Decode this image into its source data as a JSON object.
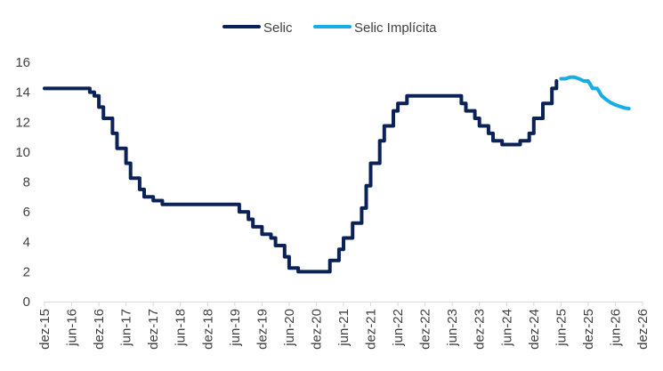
{
  "chart_data": {
    "type": "line",
    "title": "",
    "xlabel": "",
    "ylabel": "",
    "ylim": [
      0,
      16
    ],
    "yticks": [
      0,
      2,
      4,
      6,
      8,
      10,
      12,
      14,
      16
    ],
    "x_tick_labels": [
      "dez-15",
      "jun-16",
      "dez-16",
      "jun-17",
      "dez-17",
      "jun-18",
      "dez-18",
      "jun-19",
      "dez-19",
      "jun-20",
      "dez-20",
      "jun-21",
      "dez-21",
      "jun-22",
      "dez-22",
      "jun-23",
      "dez-23",
      "jun-24",
      "dez-24",
      "jun-25",
      "dez-25",
      "jun-26",
      "dez-26"
    ],
    "grid": false,
    "legend_position": "top",
    "colors": {
      "Selic": "#0b2258",
      "Selic Implícita": "#17aee6",
      "axis": "#d9d9d9",
      "text": "#404040"
    },
    "series": [
      {
        "name": "Selic",
        "points": [
          [
            "2015-12",
            14.25
          ],
          [
            "2016-01",
            14.25
          ],
          [
            "2016-02",
            14.25
          ],
          [
            "2016-03",
            14.25
          ],
          [
            "2016-04",
            14.25
          ],
          [
            "2016-05",
            14.25
          ],
          [
            "2016-06",
            14.25
          ],
          [
            "2016-07",
            14.25
          ],
          [
            "2016-08",
            14.25
          ],
          [
            "2016-09",
            14.25
          ],
          [
            "2016-10",
            14.0
          ],
          [
            "2016-11",
            13.75
          ],
          [
            "2016-12",
            13.0
          ],
          [
            "2017-01",
            12.25
          ],
          [
            "2017-02",
            12.25
          ],
          [
            "2017-03",
            11.25
          ],
          [
            "2017-04",
            10.25
          ],
          [
            "2017-05",
            10.25
          ],
          [
            "2017-06",
            9.25
          ],
          [
            "2017-07",
            8.25
          ],
          [
            "2017-08",
            8.25
          ],
          [
            "2017-09",
            7.5
          ],
          [
            "2017-10",
            7.0
          ],
          [
            "2017-11",
            7.0
          ],
          [
            "2017-12",
            6.75
          ],
          [
            "2018-01",
            6.75
          ],
          [
            "2018-02",
            6.5
          ],
          [
            "2018-03",
            6.5
          ],
          [
            "2018-04",
            6.5
          ],
          [
            "2018-05",
            6.5
          ],
          [
            "2018-06",
            6.5
          ],
          [
            "2018-07",
            6.5
          ],
          [
            "2018-08",
            6.5
          ],
          [
            "2018-09",
            6.5
          ],
          [
            "2018-10",
            6.5
          ],
          [
            "2018-11",
            6.5
          ],
          [
            "2018-12",
            6.5
          ],
          [
            "2019-01",
            6.5
          ],
          [
            "2019-02",
            6.5
          ],
          [
            "2019-03",
            6.5
          ],
          [
            "2019-04",
            6.5
          ],
          [
            "2019-05",
            6.5
          ],
          [
            "2019-06",
            6.5
          ],
          [
            "2019-07",
            6.0
          ],
          [
            "2019-08",
            6.0
          ],
          [
            "2019-09",
            5.5
          ],
          [
            "2019-10",
            5.0
          ],
          [
            "2019-11",
            5.0
          ],
          [
            "2019-12",
            4.5
          ],
          [
            "2020-01",
            4.5
          ],
          [
            "2020-02",
            4.25
          ],
          [
            "2020-03",
            3.75
          ],
          [
            "2020-04",
            3.75
          ],
          [
            "2020-05",
            3.0
          ],
          [
            "2020-06",
            2.25
          ],
          [
            "2020-07",
            2.25
          ],
          [
            "2020-08",
            2.0
          ],
          [
            "2020-09",
            2.0
          ],
          [
            "2020-10",
            2.0
          ],
          [
            "2020-11",
            2.0
          ],
          [
            "2020-12",
            2.0
          ],
          [
            "2021-01",
            2.0
          ],
          [
            "2021-02",
            2.0
          ],
          [
            "2021-03",
            2.75
          ],
          [
            "2021-04",
            2.75
          ],
          [
            "2021-05",
            3.5
          ],
          [
            "2021-06",
            4.25
          ],
          [
            "2021-07",
            4.25
          ],
          [
            "2021-08",
            5.25
          ],
          [
            "2021-09",
            5.25
          ],
          [
            "2021-10",
            6.25
          ],
          [
            "2021-11",
            7.75
          ],
          [
            "2021-12",
            9.25
          ],
          [
            "2022-01",
            9.25
          ],
          [
            "2022-02",
            10.75
          ],
          [
            "2022-03",
            11.75
          ],
          [
            "2022-04",
            11.75
          ],
          [
            "2022-05",
            12.75
          ],
          [
            "2022-06",
            13.25
          ],
          [
            "2022-07",
            13.25
          ],
          [
            "2022-08",
            13.75
          ],
          [
            "2022-09",
            13.75
          ],
          [
            "2022-10",
            13.75
          ],
          [
            "2022-11",
            13.75
          ],
          [
            "2022-12",
            13.75
          ],
          [
            "2023-01",
            13.75
          ],
          [
            "2023-02",
            13.75
          ],
          [
            "2023-03",
            13.75
          ],
          [
            "2023-04",
            13.75
          ],
          [
            "2023-05",
            13.75
          ],
          [
            "2023-06",
            13.75
          ],
          [
            "2023-07",
            13.75
          ],
          [
            "2023-08",
            13.25
          ],
          [
            "2023-09",
            12.75
          ],
          [
            "2023-10",
            12.75
          ],
          [
            "2023-11",
            12.25
          ],
          [
            "2023-12",
            11.75
          ],
          [
            "2024-01",
            11.75
          ],
          [
            "2024-02",
            11.25
          ],
          [
            "2024-03",
            10.75
          ],
          [
            "2024-04",
            10.75
          ],
          [
            "2024-05",
            10.5
          ],
          [
            "2024-06",
            10.5
          ],
          [
            "2024-07",
            10.5
          ],
          [
            "2024-08",
            10.5
          ],
          [
            "2024-09",
            10.75
          ],
          [
            "2024-10",
            10.75
          ],
          [
            "2024-11",
            11.25
          ],
          [
            "2024-12",
            12.25
          ],
          [
            "2025-01",
            12.25
          ],
          [
            "2025-02",
            13.25
          ],
          [
            "2025-03",
            13.25
          ],
          [
            "2025-04",
            14.25
          ],
          [
            "2025-05",
            14.75
          ]
        ]
      },
      {
        "name": "Selic Implícita",
        "points": [
          [
            "2025-06",
            14.9
          ],
          [
            "2025-07",
            14.9
          ],
          [
            "2025-08",
            15.0
          ],
          [
            "2025-09",
            15.0
          ],
          [
            "2025-10",
            14.9
          ],
          [
            "2025-11",
            14.75
          ],
          [
            "2025-12",
            14.75
          ],
          [
            "2026-01",
            14.25
          ],
          [
            "2026-02",
            14.25
          ],
          [
            "2026-03",
            13.75
          ],
          [
            "2026-04",
            13.5
          ],
          [
            "2026-05",
            13.3
          ],
          [
            "2026-06",
            13.15
          ],
          [
            "2026-07",
            13.05
          ],
          [
            "2026-08",
            12.95
          ],
          [
            "2026-09",
            12.9
          ]
        ]
      }
    ]
  }
}
